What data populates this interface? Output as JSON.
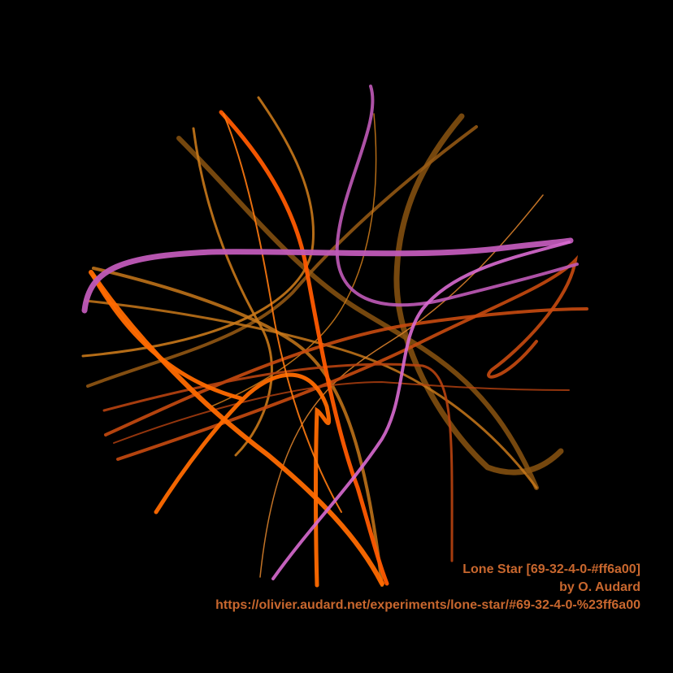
{
  "caption": {
    "title": "Lone Star [69-32-4-0-#ff6a00]",
    "author": "by O. Audard",
    "url": "https://olivier.audard.net/experiments/lone-star/#69-32-4-0-%23ff6a00"
  },
  "colors": {
    "background": "#000000",
    "caption": "#c8672e",
    "orange": "#ff6a00",
    "dark_orange": "#c84a10",
    "amber": "#c8781a",
    "brown": "#8a5410",
    "magenta": "#c05ab8",
    "pink": "#d86ad0"
  }
}
